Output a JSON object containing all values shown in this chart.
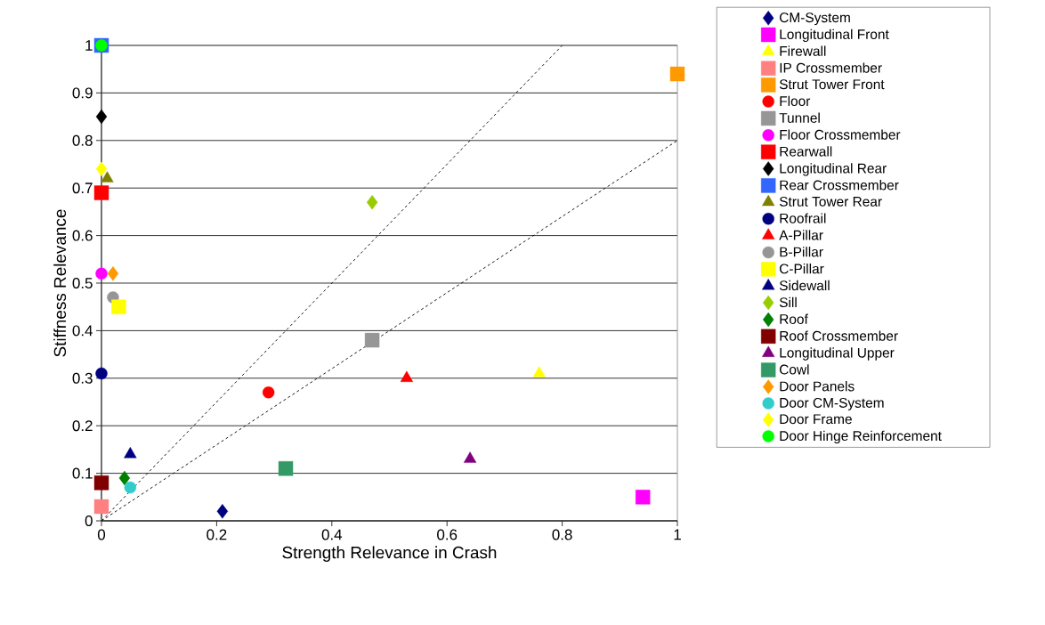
{
  "chart_data": {
    "type": "scatter",
    "xlabel": "Strength Relevance in Crash",
    "ylabel": "Stiffness Relevance",
    "xlim": [
      0,
      1
    ],
    "ylim": [
      0,
      1
    ],
    "xticks": [
      0,
      0.2,
      0.4,
      0.6,
      0.8,
      1
    ],
    "yticks": [
      0,
      0.1,
      0.2,
      0.3,
      0.4,
      0.5,
      0.6,
      0.7,
      0.8,
      0.9,
      1
    ],
    "grid": "y",
    "legend": "right",
    "series": [
      {
        "name": "CM-System",
        "color": "#000080",
        "marker": "diamond",
        "x": [
          0.21
        ],
        "values": [
          0.02
        ]
      },
      {
        "name": "Longitudinal Front",
        "color": "#ff00ff",
        "marker": "square",
        "x": [
          0.94
        ],
        "values": [
          0.05
        ]
      },
      {
        "name": "Firewall",
        "color": "#ffff00",
        "marker": "triangle",
        "x": [
          0.76
        ],
        "values": [
          0.31
        ]
      },
      {
        "name": "IP Crossmember",
        "color": "#ff8080",
        "marker": "square",
        "x": [
          0
        ],
        "values": [
          0.03
        ]
      },
      {
        "name": "Strut Tower Front",
        "color": "#ff9900",
        "marker": "square",
        "x": [
          1
        ],
        "values": [
          0.94
        ]
      },
      {
        "name": "Floor",
        "color": "#ff0000",
        "marker": "circle",
        "x": [
          0.29
        ],
        "values": [
          0.27
        ]
      },
      {
        "name": "Tunnel",
        "color": "#969696",
        "marker": "square",
        "x": [
          0.47
        ],
        "values": [
          0.38
        ]
      },
      {
        "name": "Floor Crossmember",
        "color": "#ff00ff",
        "marker": "circle",
        "x": [
          0
        ],
        "values": [
          0.52
        ]
      },
      {
        "name": "Rearwall",
        "color": "#ff0000",
        "marker": "square",
        "x": [
          0
        ],
        "values": [
          0.69
        ]
      },
      {
        "name": "Longitudinal Rear",
        "color": "#000000",
        "marker": "diamond",
        "x": [
          0
        ],
        "values": [
          0.85
        ]
      },
      {
        "name": "Rear Crossmember",
        "color": "#3366ff",
        "marker": "square",
        "x": [
          0
        ],
        "values": [
          1
        ]
      },
      {
        "name": "Strut Tower Rear",
        "color": "#808000",
        "marker": "triangle",
        "x": [
          0.01
        ],
        "values": [
          0.72
        ]
      },
      {
        "name": "Roofrail",
        "color": "#000080",
        "marker": "circle",
        "x": [
          0
        ],
        "values": [
          0.31
        ]
      },
      {
        "name": "A-Pillar",
        "color": "#ff0000",
        "marker": "triangle",
        "x": [
          0.53
        ],
        "values": [
          0.3
        ]
      },
      {
        "name": "B-Pillar",
        "color": "#969696",
        "marker": "circle",
        "x": [
          0.02
        ],
        "values": [
          0.47
        ]
      },
      {
        "name": "C-Pillar",
        "color": "#ffff00",
        "marker": "square",
        "x": [
          0.03
        ],
        "values": [
          0.45
        ]
      },
      {
        "name": "Sidewall",
        "color": "#000080",
        "marker": "triangle",
        "x": [
          0.05
        ],
        "values": [
          0.14
        ]
      },
      {
        "name": "Sill",
        "color": "#99cc00",
        "marker": "diamond",
        "x": [
          0.47
        ],
        "values": [
          0.67
        ]
      },
      {
        "name": "Roof",
        "color": "#008000",
        "marker": "diamond",
        "x": [
          0.04
        ],
        "values": [
          0.09
        ]
      },
      {
        "name": "Roof Crossmember",
        "color": "#800000",
        "marker": "square",
        "x": [
          0
        ],
        "values": [
          0.08
        ]
      },
      {
        "name": "Longitudinal Upper",
        "color": "#800080",
        "marker": "triangle",
        "x": [
          0.64
        ],
        "values": [
          0.13
        ]
      },
      {
        "name": "Cowl",
        "color": "#339966",
        "marker": "square",
        "x": [
          0.32
        ],
        "values": [
          0.11
        ]
      },
      {
        "name": "Door Panels",
        "color": "#ff9900",
        "marker": "diamond",
        "x": [
          0.02
        ],
        "values": [
          0.52
        ]
      },
      {
        "name": "Door CM-System",
        "color": "#33cccc",
        "marker": "circle",
        "x": [
          0.05
        ],
        "values": [
          0.07
        ]
      },
      {
        "name": "Door Frame",
        "color": "#ffff00",
        "marker": "diamond",
        "x": [
          0
        ],
        "values": [
          0.74
        ]
      },
      {
        "name": "Door Hinge Reinforcement",
        "color": "#00ff00",
        "marker": "circle",
        "x": [
          0
        ],
        "values": [
          1
        ]
      },
      {
        "type": "line",
        "color": "#000000",
        "line_style": "dashed",
        "x": [
          0,
          0.8
        ],
        "values": [
          0,
          1
        ]
      },
      {
        "type": "line",
        "color": "#000000",
        "line_style": "dashed",
        "x": [
          0,
          1
        ],
        "values": [
          0,
          0.8
        ]
      }
    ]
  }
}
